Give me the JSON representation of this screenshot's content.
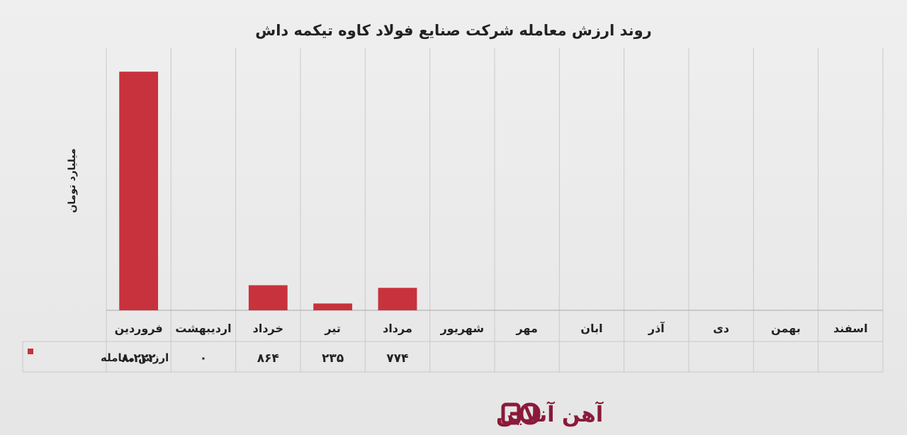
{
  "chart_data": {
    "type": "bar",
    "title": "روند ارزش معامله شرکت صنایع فولاد کاوه تیکمه داش",
    "ylabel": "میلیارد تومان",
    "categories": [
      "فروردین",
      "اردیبهشت",
      "خرداد",
      "تیر",
      "مرداد",
      "شهریور",
      "مهر",
      "ابان",
      "آذر",
      "دی",
      "بهمن",
      "اسفند"
    ],
    "series": [
      {
        "name": "ارزش معامله",
        "color": "#c8323c",
        "values": [
          8222,
          0,
          864,
          235,
          774,
          null,
          null,
          null,
          null,
          null,
          null,
          null
        ],
        "value_labels": [
          "۸،۲۲۲",
          "۰",
          "۸۶۴",
          "۲۳۵",
          "۷۷۴",
          "",
          "",
          "",
          "",
          "",
          "",
          ""
        ]
      }
    ],
    "ylim": [
      0,
      8550
    ],
    "grid": "vertical",
    "data_table": true,
    "direction": "rtl"
  },
  "brand": {
    "name": "آهن آنلاین",
    "color": "#8a1a3a",
    "logo": "ao-logo-icon"
  }
}
